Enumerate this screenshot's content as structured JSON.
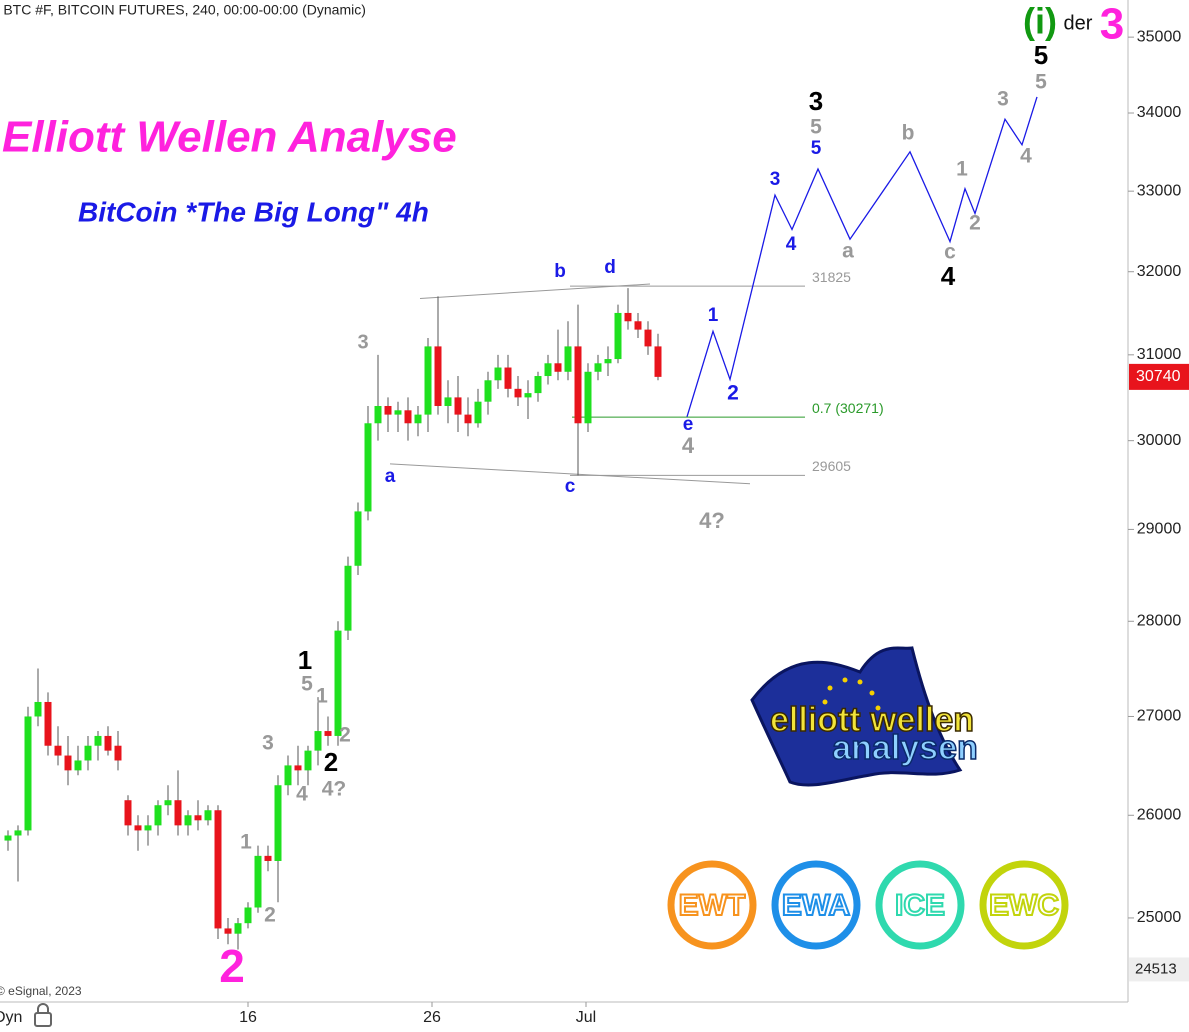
{
  "chart_data": {
    "type": "candlestick",
    "header": "* BTC #F, BITCOIN FUTURES, 240, 00:00-00:00 (Dynamic)",
    "title": "Elliott Wellen Analyse",
    "subtitle": "BitCoin *The Big Long\" 4h",
    "source": "© eSignal, 2023",
    "interval_label": "Dyn",
    "log_scale": true,
    "colors": {
      "up": "#1fe01f",
      "down": "#e8141c",
      "wick": "#555555",
      "projection": "#1a1ae6",
      "level": "#999999",
      "fib": "#2a9a2a",
      "trend": "#999999",
      "last_price": "#e8141c"
    },
    "x": [
      0,
      1,
      2,
      3,
      4,
      5,
      6,
      7,
      8,
      9,
      10,
      11,
      12,
      13,
      14,
      15,
      16,
      17,
      18,
      19,
      20,
      21,
      22,
      23,
      24,
      25,
      26,
      27,
      28,
      29,
      30,
      31,
      32,
      33,
      34,
      35,
      36,
      37,
      38,
      39,
      40,
      41,
      42,
      43,
      44,
      45,
      46,
      47,
      48,
      49,
      50,
      51,
      52,
      53,
      54,
      55,
      56,
      57,
      58,
      59,
      60,
      61,
      62,
      63,
      64,
      65
    ],
    "open": [
      25750,
      25800,
      25850,
      27000,
      27150,
      26700,
      26600,
      26450,
      26550,
      26700,
      26800,
      26700,
      26150,
      25900,
      25850,
      25900,
      26100,
      26150,
      25900,
      26000,
      25950,
      26050,
      24900,
      24850,
      24950,
      25100,
      25600,
      25550,
      26300,
      26500,
      26450,
      26650,
      26850,
      26800,
      27900,
      28600,
      29200,
      30200,
      30400,
      30300,
      30350,
      30200,
      30300,
      31100,
      30400,
      30500,
      30300,
      30200,
      30450,
      30700,
      30850,
      30600,
      30500,
      30550,
      30750,
      30900,
      30800,
      31100,
      30200,
      30800,
      30900,
      30950,
      31500,
      31400,
      31300,
      31100
    ],
    "high": [
      25850,
      25900,
      27100,
      27500,
      27250,
      26900,
      26800,
      26700,
      26800,
      26850,
      26900,
      26850,
      26200,
      26000,
      26000,
      26150,
      26300,
      26450,
      26050,
      26150,
      26100,
      26100,
      25000,
      25000,
      25150,
      25700,
      25700,
      26400,
      26600,
      26700,
      26700,
      27200,
      27000,
      28000,
      28700,
      29300,
      30400,
      31000,
      30500,
      30450,
      30500,
      30400,
      31200,
      31700,
      30700,
      30750,
      30500,
      30600,
      30800,
      31000,
      31000,
      30750,
      30700,
      30800,
      31000,
      31300,
      31400,
      31600,
      30900,
      31000,
      31100,
      31600,
      31800,
      31500,
      31400,
      31250
    ],
    "low": [
      25650,
      25350,
      25800,
      26900,
      26600,
      26500,
      26300,
      26400,
      26450,
      26550,
      26600,
      26450,
      25800,
      25650,
      25700,
      25800,
      26000,
      25800,
      25800,
      25850,
      25900,
      24800,
      24750,
      24700,
      24900,
      25050,
      25450,
      25150,
      26200,
      26300,
      26300,
      26500,
      26700,
      26700,
      27800,
      28500,
      29100,
      30000,
      30100,
      30100,
      30000,
      30050,
      30100,
      30300,
      30200,
      30100,
      30050,
      30150,
      30300,
      30600,
      30500,
      30400,
      30250,
      30450,
      30650,
      30700,
      30700,
      29605,
      30100,
      30700,
      30750,
      30900,
      31300,
      31200,
      31000,
      30700
    ],
    "close": [
      25800,
      25850,
      27000,
      27150,
      26700,
      26600,
      26450,
      26550,
      26700,
      26800,
      26650,
      26550,
      25900,
      25850,
      25900,
      26100,
      26150,
      25900,
      26000,
      25950,
      26050,
      24900,
      24850,
      24950,
      25100,
      25600,
      25550,
      26300,
      26500,
      26450,
      26650,
      26850,
      26800,
      27900,
      28600,
      29200,
      30200,
      30400,
      30300,
      30350,
      30200,
      30300,
      31100,
      30400,
      30500,
      30300,
      30200,
      30450,
      30700,
      30850,
      30600,
      30500,
      30550,
      30750,
      30900,
      30800,
      31100,
      30200,
      30800,
      30900,
      30950,
      31500,
      31400,
      31300,
      31100,
      30740
    ],
    "xlim": [
      -0.8,
      111.9
    ],
    "xticks": [
      {
        "value": 24,
        "label": "16"
      },
      {
        "value": 42.4,
        "label": "26"
      },
      {
        "value": 57.8,
        "label": "Jul"
      }
    ],
    "ylim": [
      24210,
      35500
    ],
    "yticks": [
      25000,
      26000,
      27000,
      28000,
      29000,
      30000,
      31000,
      32000,
      33000,
      34000,
      35000
    ],
    "last_price": 30740,
    "low_marker": 24513,
    "levels": [
      31825,
      29605
    ],
    "fib_level": {
      "value": 30271,
      "label": "0.7 (30271)"
    },
    "trendlines": [
      [
        [
          41.2,
          31675
        ],
        [
          64.2,
          31850
        ]
      ],
      [
        [
          38.2,
          29735
        ],
        [
          74.2,
          29510
        ]
      ]
    ],
    "projection": {
      "x": [
        67.9,
        70.5,
        72.2,
        76.7,
        78.4,
        81,
        84.2,
        90.2,
        94.2,
        95.7,
        96.7,
        99.7,
        101.4,
        102.9
      ],
      "values": [
        30275,
        31280,
        30710,
        32950,
        32520,
        33280,
        32400,
        33500,
        32370,
        33030,
        32720,
        33920,
        33590,
        34210
      ]
    },
    "wave_labels": [
      {
        "text": "3",
        "color": "#999999"
      },
      {
        "text": "b",
        "color": "#1a1ae6"
      },
      {
        "text": "d",
        "color": "#1a1ae6"
      },
      {
        "text": "a",
        "color": "#1a1ae6"
      },
      {
        "text": "c",
        "color": "#1a1ae6"
      },
      {
        "text": "e",
        "color": "#1a1ae6"
      },
      {
        "text": "4",
        "color": "#999999"
      },
      {
        "text": "4?",
        "color": "#999999"
      },
      {
        "text": "1",
        "color": "#1a1ae6"
      },
      {
        "text": "2",
        "color": "#1a1ae6"
      },
      {
        "text": "3",
        "color": "#1a1ae6"
      },
      {
        "text": "4",
        "color": "#1a1ae6"
      },
      {
        "text": "3",
        "color": "#000000"
      },
      {
        "text": "5",
        "color": "#999999"
      },
      {
        "text": "5",
        "color": "#1a1ae6"
      },
      {
        "text": "a",
        "color": "#999999"
      },
      {
        "text": "b",
        "color": "#999999"
      },
      {
        "text": "c",
        "color": "#999999"
      },
      {
        "text": "4",
        "color": "#000000"
      },
      {
        "text": "1",
        "color": "#999999"
      },
      {
        "text": "2",
        "color": "#999999"
      },
      {
        "text": "3",
        "color": "#999999"
      },
      {
        "text": "4",
        "color": "#999999"
      },
      {
        "text": "5",
        "color": "#999999"
      },
      {
        "text": "5",
        "color": "#000000"
      },
      {
        "text": "1",
        "color": "#000000"
      },
      {
        "text": "5",
        "color": "#999999"
      },
      {
        "text": "1",
        "color": "#999999"
      },
      {
        "text": "2",
        "color": "#999999"
      },
      {
        "text": "2",
        "color": "#000000"
      },
      {
        "text": "4",
        "color": "#999999"
      },
      {
        "text": "4?",
        "color": "#999999"
      },
      {
        "text": "3",
        "color": "#999999"
      },
      {
        "text": "1",
        "color": "#999999"
      },
      {
        "text": "2",
        "color": "#999999"
      },
      {
        "text": "2",
        "color": "#ff22dd"
      }
    ],
    "degree_label": {
      "wave": "(i)",
      "of": "der",
      "target": "3"
    },
    "logo": {
      "line1": "elliott wellen",
      "line2": "analysen"
    },
    "badges": [
      {
        "text": "EWT",
        "color": "#f7931e"
      },
      {
        "text": "EWA",
        "color": "#1e8fe8"
      },
      {
        "text": "ICE",
        "color": "#2fd9ae"
      },
      {
        "text": "EWC",
        "color": "#c2d40c"
      }
    ]
  }
}
